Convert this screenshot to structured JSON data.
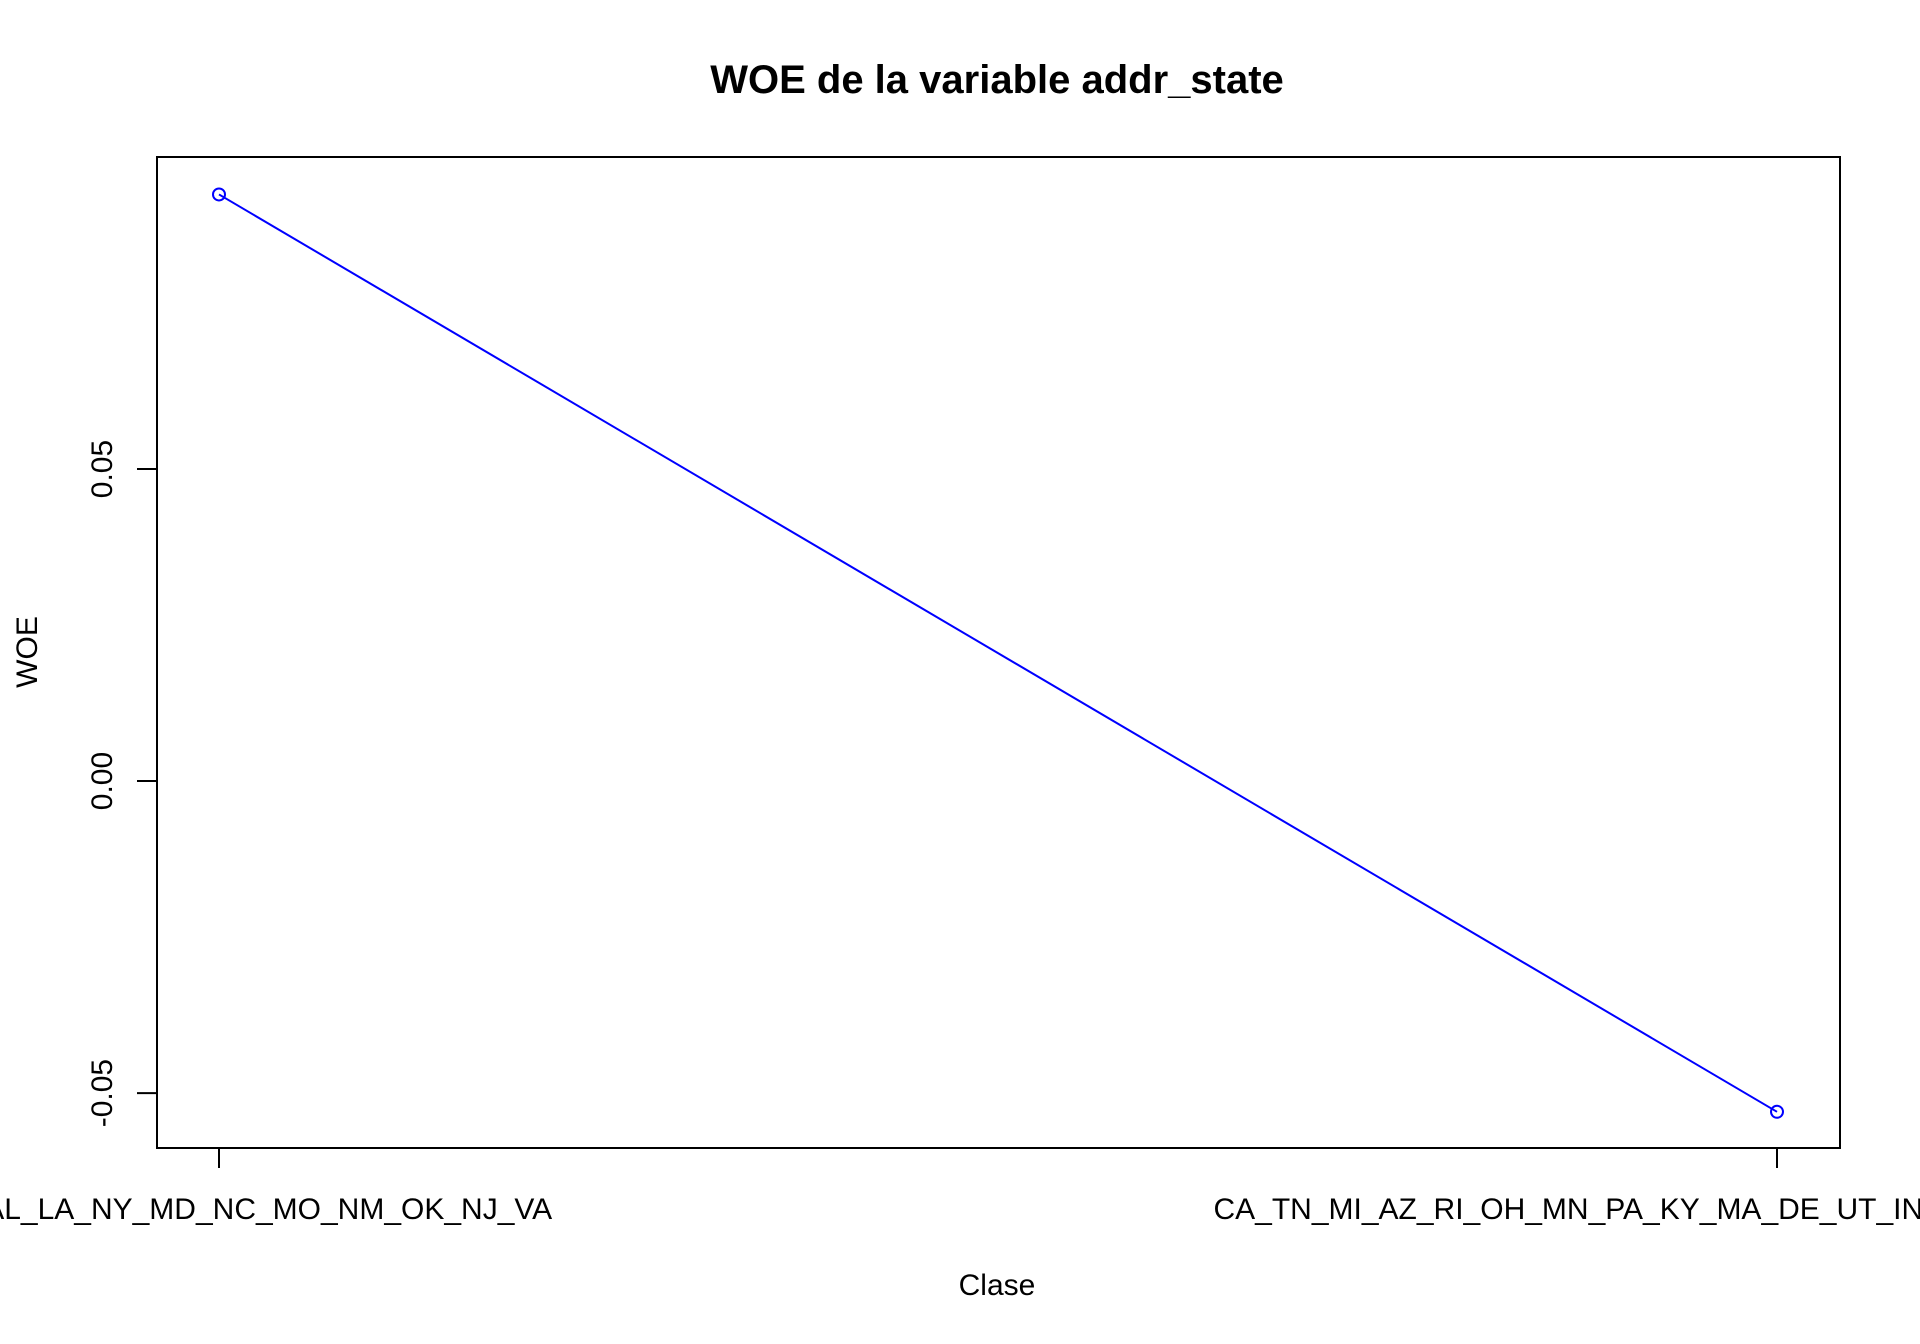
{
  "chart_data": {
    "type": "line",
    "title": "WOE de la variable addr_state",
    "xlabel": "Clase",
    "ylabel": "WOE",
    "categories": [
      "HI_FL_AL_LA_NY_MD_NC_MO_NM_OK_NJ_VA",
      "CA_TN_MI_AZ_RI_OH_MN_PA_KY_MA_DE_UT_IN_AR_GA_WA_ME_WI_SD_OR"
    ],
    "series": [
      {
        "values": [
          0.094,
          -0.053
        ]
      }
    ],
    "y_ticks": [
      -0.05,
      0.0,
      0.05
    ],
    "y_tick_labels": [
      "-0.05",
      "0.00",
      "0.05"
    ],
    "ylim": [
      -0.0588,
      0.1
    ],
    "grid": false,
    "line_color": "#0000ff",
    "marker": "open-circle"
  }
}
